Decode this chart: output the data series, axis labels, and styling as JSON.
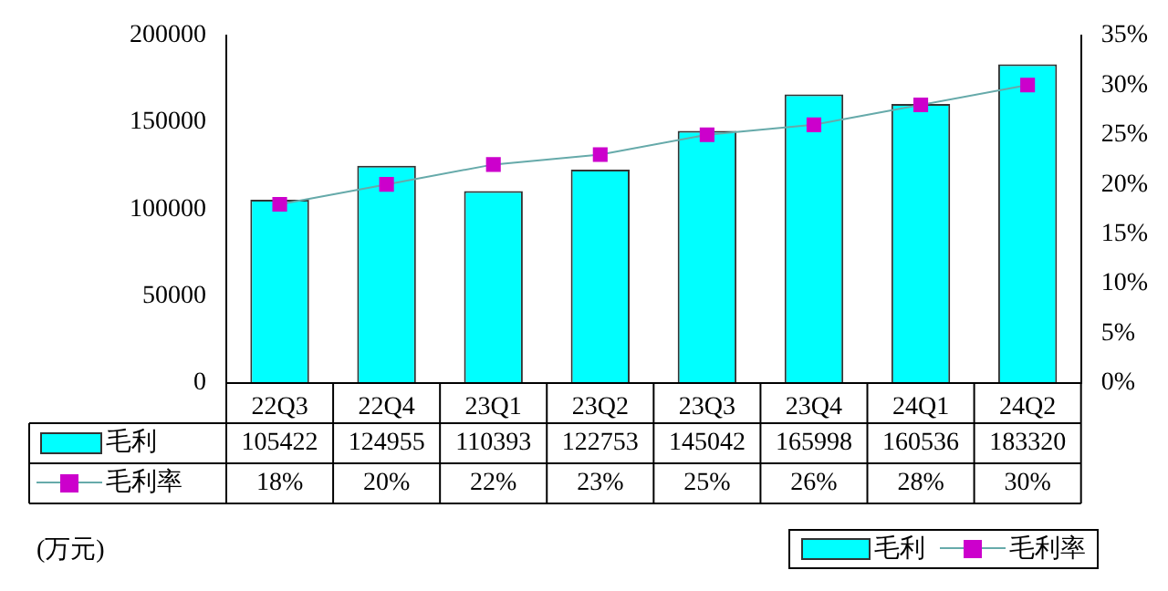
{
  "chart_data": {
    "type": "bar",
    "categories": [
      "22Q3",
      "22Q4",
      "23Q1",
      "23Q2",
      "23Q3",
      "23Q4",
      "24Q1",
      "24Q2"
    ],
    "series": [
      {
        "name": "毛利",
        "color": "#00ffff",
        "values": [
          105422,
          124955,
          110393,
          122753,
          145042,
          165998,
          160536,
          183320
        ]
      },
      {
        "name": "毛利率",
        "type": "line",
        "axis": "y2",
        "color": "#cc00cc",
        "values": [
          18,
          20,
          22,
          23,
          25,
          26,
          28,
          30
        ],
        "value_labels": [
          "18%",
          "20%",
          "22%",
          "23%",
          "25%",
          "26%",
          "28%",
          "30%"
        ]
      }
    ],
    "ylim": [
      0,
      200000
    ],
    "yticks": [
      0,
      50000,
      100000,
      150000,
      200000
    ],
    "y2lim": [
      0,
      35
    ],
    "y2ticks": [
      {
        "value": 0,
        "label": "0%"
      },
      {
        "value": 5,
        "label": "5%"
      },
      {
        "value": 10,
        "label": "10%"
      },
      {
        "value": 15,
        "label": "15%"
      },
      {
        "value": 20,
        "label": "20%"
      },
      {
        "value": 25,
        "label": "25%"
      },
      {
        "value": 30,
        "label": "30%"
      },
      {
        "value": 35,
        "label": "35%"
      }
    ],
    "data_labels": true,
    "marker": "square",
    "grid": false,
    "legend": "bottom",
    "annotations": [
      "(万元)"
    ]
  }
}
